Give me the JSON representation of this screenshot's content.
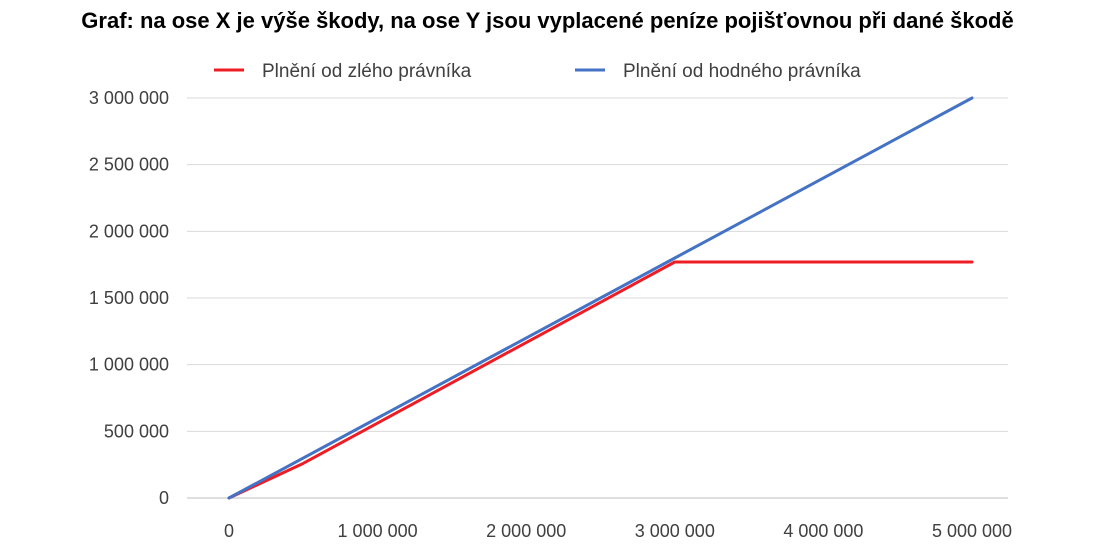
{
  "chart_data": {
    "type": "line",
    "title": "Graf: na ose X je výše škody, na ose Y jsou vyplacené peníze pojišťovnou při dané škodě",
    "xlabel": "",
    "ylabel": "",
    "xlim": [
      0,
      5000000
    ],
    "ylim": [
      0,
      3000000
    ],
    "x_ticks": [
      0,
      1000000,
      2000000,
      3000000,
      4000000,
      5000000
    ],
    "x_tick_labels": [
      "0",
      "1 000 000",
      "2 000 000",
      "3 000 000",
      "4 000 000",
      "5 000 000"
    ],
    "y_ticks": [
      0,
      500000,
      1000000,
      1500000,
      2000000,
      2500000,
      3000000
    ],
    "y_tick_labels": [
      "0",
      "500 000",
      "1 000 000",
      "1 500 000",
      "2 000 000",
      "2 500 000",
      "3 000 000"
    ],
    "grid": "horizontal",
    "legend_position": "top",
    "series": [
      {
        "name": "Plnění od zlého právníka",
        "color": "#ee1c25",
        "x": [
          0,
          500000,
          3000000,
          5000000
        ],
        "y": [
          0,
          260000,
          1770000,
          1770000
        ]
      },
      {
        "name": "Plnění od hodného právníka",
        "color": "#4472c4",
        "x": [
          0,
          3000000,
          5000000
        ],
        "y": [
          0,
          1800000,
          3000000
        ]
      }
    ]
  }
}
